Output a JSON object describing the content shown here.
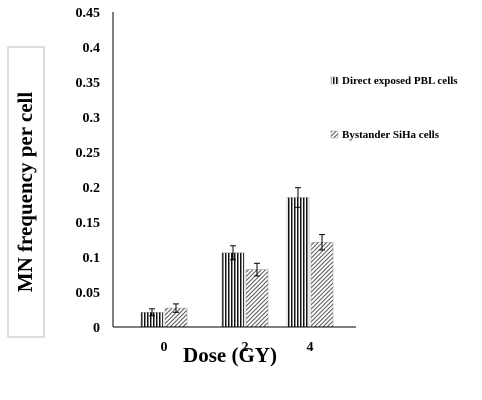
{
  "chart_data": {
    "type": "bar",
    "title": "",
    "xlabel": "Dose (GY)",
    "ylabel": "MN frequency per cell",
    "categories": [
      "0",
      "2",
      "4"
    ],
    "ylim": [
      0,
      0.45
    ],
    "yticks": [
      "0",
      "0.05",
      "0.1",
      "0.15",
      "0.2",
      "0.25",
      "0.3",
      "0.35",
      "0.4",
      "0.45"
    ],
    "grid": false,
    "legend_position": "right",
    "series": [
      {
        "name": "Direct exposed PBL cells",
        "pattern": "vertical-stripes",
        "values": [
          0.021,
          0.106,
          0.185
        ],
        "errors": [
          0.005,
          0.01,
          0.014
        ]
      },
      {
        "name": "Bystander SiHa cells",
        "pattern": "diagonal-hatch",
        "values": [
          0.027,
          0.082,
          0.121
        ],
        "errors": [
          0.006,
          0.009,
          0.011
        ]
      }
    ]
  }
}
